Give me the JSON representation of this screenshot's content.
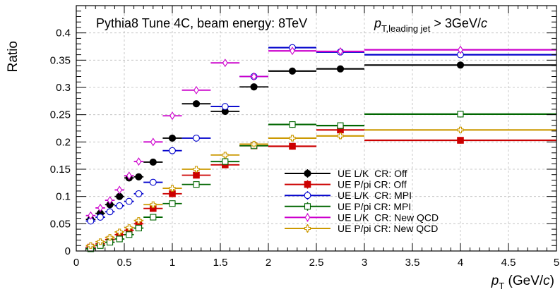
{
  "chart_data": {
    "type": "scatter",
    "title": "Pythia8 Tune 4C, beam energy: 8TeV",
    "annotation": {
      "pt_symbol": "p",
      "pt_subscript": "T,leading jet",
      "cut_text": " > 3GeV/",
      "cut_unit": "c"
    },
    "xlabel": {
      "symbol": "p",
      "subscript": "T",
      "unit_prefix": " (GeV/",
      "unit": "c",
      "unit_suffix": ")"
    },
    "ylabel": "Ratio",
    "xlim": [
      0,
      5
    ],
    "ylim": [
      0,
      0.45
    ],
    "grid": true,
    "x_ticks": [
      {
        "value": 0,
        "label": "0"
      },
      {
        "value": 0.5,
        "label": "0.5"
      },
      {
        "value": 1,
        "label": "1"
      },
      {
        "value": 1.5,
        "label": "1.5"
      },
      {
        "value": 2,
        "label": "2"
      },
      {
        "value": 2.5,
        "label": "2.5"
      },
      {
        "value": 3,
        "label": "3"
      },
      {
        "value": 3.5,
        "label": "3.5"
      },
      {
        "value": 4,
        "label": "4"
      },
      {
        "value": 4.5,
        "label": "4.5"
      },
      {
        "value": 5,
        "label": "5"
      }
    ],
    "y_ticks": [
      {
        "value": 0,
        "label": "0"
      },
      {
        "value": 0.05,
        "label": "0.05"
      },
      {
        "value": 0.1,
        "label": "0.1"
      },
      {
        "value": 0.15,
        "label": "0.15"
      },
      {
        "value": 0.2,
        "label": "0.2"
      },
      {
        "value": 0.25,
        "label": "0.25"
      },
      {
        "value": 0.3,
        "label": "0.3"
      },
      {
        "value": 0.35,
        "label": "0.35"
      },
      {
        "value": 0.4,
        "label": "0.4"
      }
    ],
    "bin_edges": [
      0.1,
      0.2,
      0.3,
      0.4,
      0.5,
      0.6,
      0.7,
      0.9,
      1.1,
      1.4,
      1.7,
      2.0,
      2.5,
      3.0,
      5.0
    ],
    "legend_position": "bottom-center",
    "series": [
      {
        "name": "UE L/K  CR: Off",
        "color": "#000000",
        "marker": "filled-circle",
        "values": [
          0.058,
          0.069,
          0.085,
          0.1,
          0.134,
          0.136,
          0.163,
          0.207,
          0.27,
          0.256,
          0.301,
          0.33,
          0.334,
          0.341
        ]
      },
      {
        "name": "UE P/pi CR: Off",
        "color": "#cc0000",
        "marker": "filled-square",
        "values": [
          0.007,
          0.013,
          0.021,
          0.03,
          0.038,
          0.05,
          0.078,
          0.105,
          0.139,
          0.158,
          0.193,
          0.192,
          0.222,
          0.203
        ]
      },
      {
        "name": "UE L/K  CR: MPI",
        "color": "#0000cc",
        "marker": "open-circle",
        "values": [
          0.055,
          0.062,
          0.072,
          0.083,
          0.091,
          0.105,
          0.126,
          0.184,
          0.207,
          0.265,
          0.32,
          0.373,
          0.365,
          0.36
        ]
      },
      {
        "name": "UE P/pi CR: MPI",
        "color": "#006600",
        "marker": "open-square",
        "values": [
          0.004,
          0.01,
          0.016,
          0.022,
          0.03,
          0.042,
          0.062,
          0.087,
          0.122,
          0.164,
          0.193,
          0.232,
          0.23,
          0.251
        ]
      },
      {
        "name": "UE L/K  CR: New QCD",
        "color": "#cc00cc",
        "marker": "open-diamond",
        "values": [
          0.065,
          0.079,
          0.093,
          0.112,
          0.138,
          0.164,
          0.2,
          0.248,
          0.295,
          0.345,
          0.32,
          0.367,
          0.366,
          0.369
        ]
      },
      {
        "name": "UE P/pi CR: New QCD",
        "color": "#cc9900",
        "marker": "open-cross",
        "values": [
          0.01,
          0.017,
          0.025,
          0.035,
          0.043,
          0.056,
          0.085,
          0.115,
          0.15,
          0.176,
          0.196,
          0.207,
          0.211,
          0.222
        ]
      }
    ]
  }
}
